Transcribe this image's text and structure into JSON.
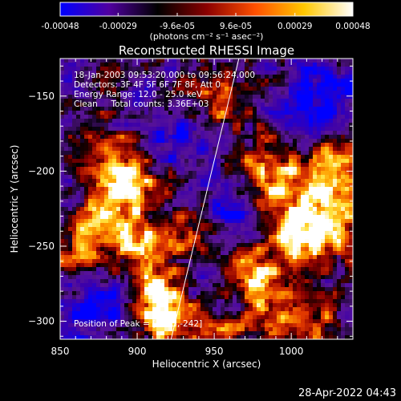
{
  "colorbar": {
    "ticks": [
      "-0.00048",
      "-0.00029",
      "-9.6e-05",
      "9.6e-05",
      "0.00029",
      "0.00048"
    ],
    "tick_values": [
      -0.00048,
      -0.00029,
      -9.6e-05,
      9.6e-05,
      0.00029,
      0.00048
    ],
    "unit_label": "(photons cm⁻² s⁻¹ asec⁻²)",
    "range": [
      -0.00048,
      0.00048
    ],
    "colormap": [
      "#0000ff",
      "#5000a0",
      "#000000",
      "#8a0000",
      "#ff5000",
      "#ffc800",
      "#ffffff"
    ]
  },
  "chart_data": {
    "type": "heatmap",
    "title": "Reconstructed RHESSI Image",
    "xlabel": "Heliocentric X (arcsec)",
    "ylabel": "Heliocentric Y (arcsec)",
    "xlim": [
      850,
      1040
    ],
    "ylim": [
      -312,
      -125
    ],
    "xticks": [
      850,
      900,
      950,
      1000
    ],
    "yticks": [
      -150,
      -200,
      -250,
      -300
    ],
    "xtick_labels": [
      "850",
      "900",
      "950",
      "1000"
    ],
    "ytick_labels": [
      "−150",
      "−200",
      "−250",
      "−300"
    ],
    "limb_line": {
      "x": [
        922,
        966
      ],
      "y": [
        -312,
        -125
      ]
    },
    "peak": {
      "x": 1005,
      "y": -242
    },
    "blobs": [
      {
        "x": 893,
        "y": -205,
        "v": 1.0
      },
      {
        "x": 880,
        "y": -232,
        "v": 0.8
      },
      {
        "x": 905,
        "y": -252,
        "v": 0.75
      },
      {
        "x": 920,
        "y": -285,
        "v": 0.8
      },
      {
        "x": 915,
        "y": -300,
        "v": 0.7
      },
      {
        "x": 935,
        "y": -240,
        "v": 0.55
      },
      {
        "x": 980,
        "y": -200,
        "v": 0.7
      },
      {
        "x": 1000,
        "y": -215,
        "v": 0.55
      },
      {
        "x": 1005,
        "y": -242,
        "v": 1.0
      },
      {
        "x": 975,
        "y": -265,
        "v": 0.75
      },
      {
        "x": 1030,
        "y": -200,
        "v": 0.9
      },
      {
        "x": 1030,
        "y": -240,
        "v": 0.65
      },
      {
        "x": 1015,
        "y": -300,
        "v": 0.6
      },
      {
        "x": 985,
        "y": -295,
        "v": 0.55
      },
      {
        "x": 940,
        "y": -160,
        "v": 0.5
      },
      {
        "x": 960,
        "y": -150,
        "v": 0.45
      },
      {
        "x": 870,
        "y": -180,
        "v": 0.45
      },
      {
        "x": 860,
        "y": -255,
        "v": 0.6
      },
      {
        "x": 950,
        "y": -310,
        "v": 0.5
      }
    ],
    "cold_regions": [
      {
        "x": 930,
        "y": -175,
        "v": -0.7
      },
      {
        "x": 875,
        "y": -290,
        "v": -0.6
      },
      {
        "x": 1020,
        "y": -150,
        "v": -0.7
      },
      {
        "x": 960,
        "y": -225,
        "v": -0.5
      },
      {
        "x": 940,
        "y": -275,
        "v": -0.5
      }
    ]
  },
  "annotations": {
    "line1": "18-Jan-2003 09:53:20.000 to 09:56:24.000",
    "line2": "Detectors: 3F 4F 5F 6F 7F 8F, Att 0",
    "line3": "Energy Range: 12.0 - 25.0 keV",
    "line4": "Clean     Total counts: 3.36E+03",
    "peak_text": "Position of Peak = [1005,-242]"
  },
  "footer": {
    "timestamp": "28-Apr-2022 04:43"
  }
}
